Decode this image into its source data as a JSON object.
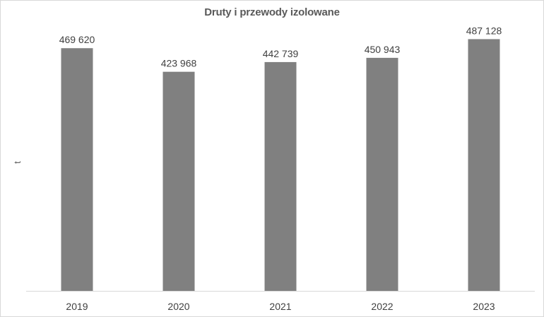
{
  "chart_data": {
    "type": "bar",
    "title": "Druty i przewody izolowane",
    "xlabel": "",
    "ylabel": "t",
    "categories": [
      "2019",
      "2020",
      "2021",
      "2022",
      "2023"
    ],
    "values": [
      469620,
      423968,
      442739,
      450943,
      487128
    ],
    "value_labels": [
      "469 620",
      "423 968",
      "442 739",
      "450 943",
      "487 128"
    ],
    "ylim": [
      0,
      500000
    ],
    "grid": false,
    "legend": "none",
    "colors": {
      "bar": "#808080",
      "text": "#404040",
      "title": "#595959"
    }
  }
}
